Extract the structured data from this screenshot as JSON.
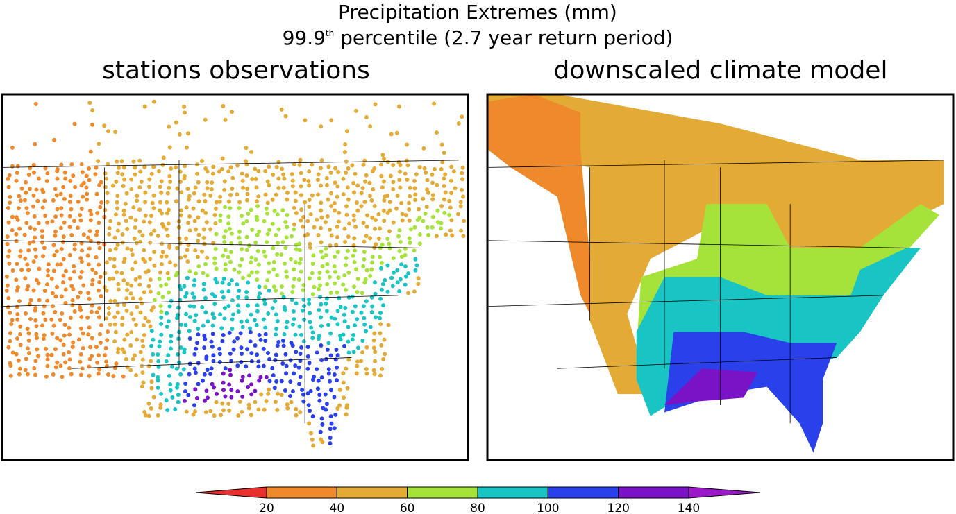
{
  "title": "Precipitation Extremes (mm)",
  "subtitle": {
    "number": "99.9",
    "superscript": "th",
    "rest": " percentile (2.7 year return period)"
  },
  "panels": [
    {
      "title": "stations observations"
    },
    {
      "title": "downscaled climate model"
    }
  ],
  "colorbar": {
    "ticks": [
      20,
      40,
      60,
      80,
      100,
      120,
      140
    ],
    "colors": [
      "#e8312f",
      "#ee8a2c",
      "#e3aa36",
      "#a6e33a",
      "#19c4c4",
      "#2a40ea",
      "#7a12c6",
      "#9a18c8"
    ]
  }
}
